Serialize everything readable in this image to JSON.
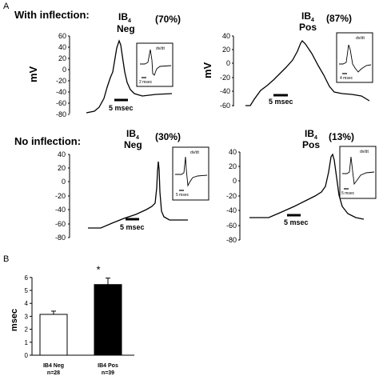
{
  "figure": {
    "panel_a_label": "A",
    "panel_b_label": "B",
    "with_inflection_label": "With inflection:",
    "no_inflection_label": "No inflection:",
    "mv_unit": "mV",
    "dvdt_label": "dv/dt"
  },
  "panels": [
    {
      "key": "with_neg",
      "group": "IB",
      "subscript": "4",
      "type": "Neg",
      "percent": "(70%)",
      "y_ticks": [
        "60",
        "40",
        "20",
        "0",
        "-20",
        "-40",
        "-60",
        "-80"
      ],
      "y_axis_label": "mV",
      "scale_bar": "5 msec",
      "inset_scale": "2 msec",
      "inset_label": "dv/dt"
    },
    {
      "key": "with_pos",
      "group": "IB",
      "subscript": "4",
      "type": "Pos",
      "percent": "(87%)",
      "y_ticks": [
        "40",
        "20",
        "0",
        "-20",
        "-40",
        "-60"
      ],
      "y_axis_label": "mV",
      "scale_bar": "5 msec",
      "inset_scale": "4 msec",
      "inset_label": "dv/dt"
    },
    {
      "key": "no_neg",
      "group": "IB",
      "subscript": "4",
      "type": "Neg",
      "percent": "(30%)",
      "y_ticks": [
        "40",
        "20",
        "0",
        "-20",
        "-40",
        "-60",
        "-80"
      ],
      "scale_bar": "5 msec",
      "inset_scale": "5 msec",
      "inset_label": "dv/dt"
    },
    {
      "key": "no_pos",
      "group": "IB",
      "subscript": "4",
      "type": "Pos",
      "percent": "(13%)",
      "y_ticks": [
        "40",
        "20",
        "0",
        "-20",
        "-40",
        "-60",
        "-80"
      ],
      "scale_bar": "5 msec",
      "inset_scale": "5 msec",
      "inset_label": "dv/dt"
    }
  ],
  "chart_data": [
    {
      "type": "bar",
      "ylabel": "msec",
      "ylim": [
        0,
        6
      ],
      "yticks": [
        "0",
        "1",
        "2",
        "3",
        "4",
        "5",
        "6"
      ],
      "categories": [
        "IB4 Neg n=28",
        "IB4 Pos n=39"
      ],
      "category_lines": [
        {
          "top": "IB4 Neg",
          "bottom": "n=28"
        },
        {
          "top": "IB4 Pos",
          "bottom": "n=39"
        }
      ],
      "values": [
        3.15,
        5.45
      ],
      "errors": [
        0.25,
        0.5
      ],
      "fills": [
        "#ffffff",
        "#000000"
      ],
      "significance": [
        "",
        "*"
      ]
    }
  ]
}
